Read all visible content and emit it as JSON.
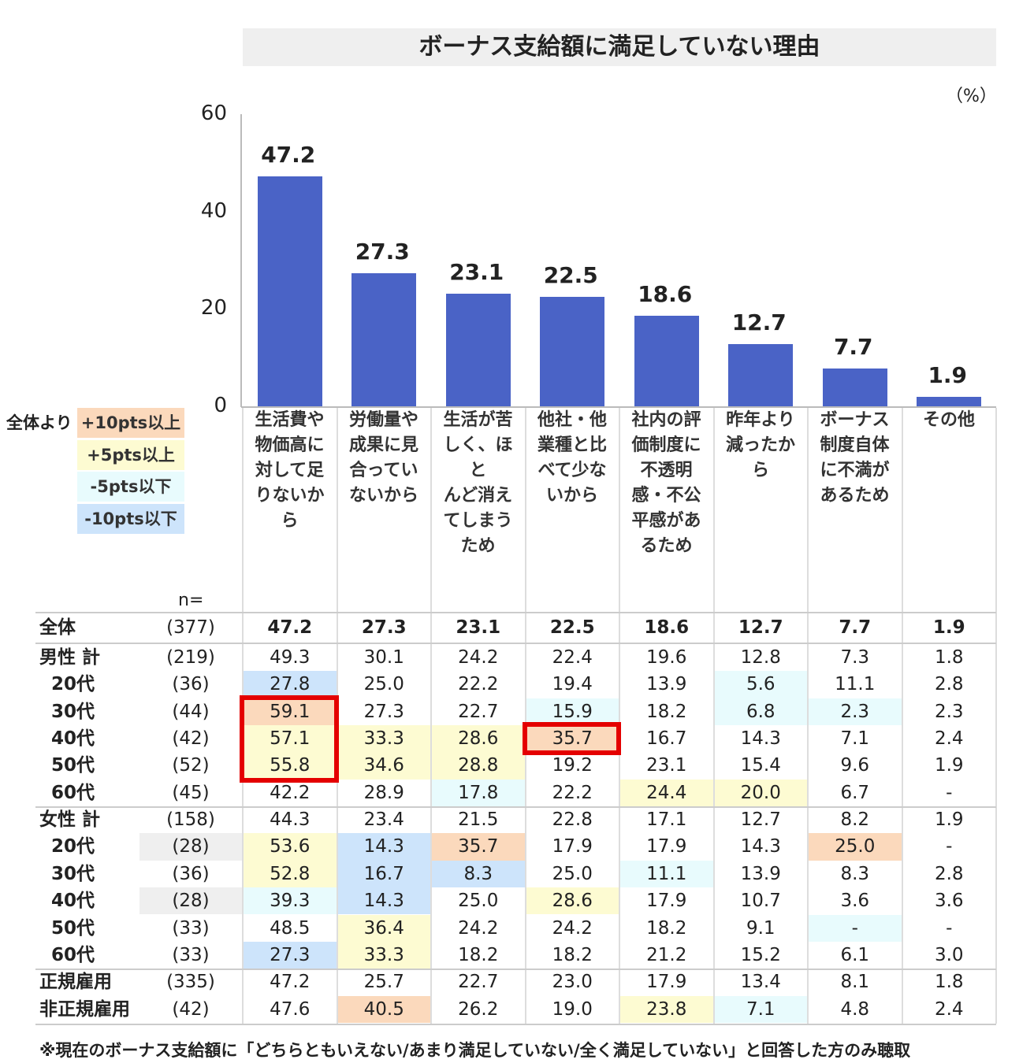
{
  "chart_data": {
    "type": "bar",
    "title": "ボーナス支給額に満足していない理由",
    "unit": "（%）",
    "ylim": [
      0,
      60
    ],
    "yticks": [
      "0",
      "20",
      "40",
      "60"
    ],
    "bar_color": "#4a63c6",
    "categories": [
      "生活費や物価高に対して足りないから",
      "労働量や成果に見合っていないから",
      "生活が苦しく、ほとんど消えてしまうため",
      "他社・他業種と比べて少ないから",
      "社内の評価制度に不透明感・不公平感があるため",
      "昨年より減ったから",
      "ボーナス制度自体に不満があるため",
      "その他"
    ],
    "category_lines": [
      [
        "生活費や",
        "物価高に",
        "対して足",
        "りないか",
        "ら"
      ],
      [
        "労働量や",
        "成果に見",
        "合ってい",
        "ないから"
      ],
      [
        "生活が苦",
        "しく、ほと",
        "んど消え",
        "てしまう",
        "ため"
      ],
      [
        "他社・他",
        "業種と比",
        "べて少な",
        "いから"
      ],
      [
        "社内の評",
        "価制度に",
        "不透明",
        "感・不公",
        "平感があ",
        "るため"
      ],
      [
        "昨年より",
        "減ったか",
        "ら"
      ],
      [
        "ボーナス",
        "制度自体",
        "に不満が",
        "あるため"
      ],
      [
        "その他"
      ]
    ],
    "values": [
      47.2,
      27.3,
      23.1,
      22.5,
      18.6,
      12.7,
      7.7,
      1.9
    ],
    "labels": [
      "47.2",
      "27.3",
      "23.1",
      "22.5",
      "18.6",
      "12.7",
      "7.7",
      "1.9"
    ]
  },
  "legend": {
    "prefix": "全体より",
    "items": [
      {
        "label": "+10pts以上",
        "color": "#fbd9bc"
      },
      {
        "label": "+5pts以上",
        "color": "#fdfbd2"
      },
      {
        "label": "-5pts以下",
        "color": "#e8fbfd"
      },
      {
        "label": "-10pts以下",
        "color": "#cde4fb"
      }
    ]
  },
  "table": {
    "n_header": "n=",
    "rows": [
      {
        "label": "全体",
        "n": "(377)",
        "bold": true,
        "values": [
          "47.2",
          "27.3",
          "23.1",
          "22.5",
          "18.6",
          "12.7",
          "7.7",
          "1.9"
        ],
        "marks": [
          "",
          "",
          "",
          "",
          "",
          "",
          "",
          ""
        ]
      },
      {
        "label": "男性 計",
        "n": "(219)",
        "values": [
          "49.3",
          "30.1",
          "24.2",
          "22.4",
          "19.6",
          "12.8",
          "7.3",
          "1.8"
        ],
        "marks": [
          "",
          "",
          "",
          "",
          "",
          "",
          "",
          ""
        ]
      },
      {
        "label": "20代",
        "n": "(36)",
        "values": [
          "27.8",
          "25.0",
          "22.2",
          "19.4",
          "13.9",
          "5.6",
          "11.1",
          "2.8"
        ],
        "marks": [
          "b",
          "",
          "",
          "",
          "",
          "c",
          "",
          ""
        ]
      },
      {
        "label": "30代",
        "n": "(44)",
        "values": [
          "59.1",
          "27.3",
          "22.7",
          "15.9",
          "18.2",
          "6.8",
          "2.3",
          "2.3"
        ],
        "marks": [
          "o",
          "",
          "",
          "c",
          "",
          "c",
          "c",
          ""
        ]
      },
      {
        "label": "40代",
        "n": "(42)",
        "values": [
          "57.1",
          "33.3",
          "28.6",
          "35.7",
          "16.7",
          "14.3",
          "7.1",
          "2.4"
        ],
        "marks": [
          "y",
          "y",
          "y",
          "o",
          "",
          "",
          "",
          ""
        ]
      },
      {
        "label": "50代",
        "n": "(52)",
        "values": [
          "55.8",
          "34.6",
          "28.8",
          "19.2",
          "23.1",
          "15.4",
          "9.6",
          "1.9"
        ],
        "marks": [
          "y",
          "y",
          "y",
          "",
          "",
          "",
          "",
          ""
        ]
      },
      {
        "label": "60代",
        "n": "(45)",
        "values": [
          "42.2",
          "28.9",
          "17.8",
          "22.2",
          "24.4",
          "20.0",
          "6.7",
          "-"
        ],
        "marks": [
          "",
          "",
          "c",
          "",
          "y",
          "y",
          "",
          ""
        ]
      },
      {
        "label": "女性 計",
        "n": "(158)",
        "values": [
          "44.3",
          "23.4",
          "21.5",
          "22.8",
          "17.1",
          "12.7",
          "8.2",
          "1.9"
        ],
        "marks": [
          "",
          "",
          "",
          "",
          "",
          "",
          "",
          ""
        ]
      },
      {
        "label": "20代",
        "n": "(28)",
        "n_gray": true,
        "values": [
          "53.6",
          "14.3",
          "35.7",
          "17.9",
          "17.9",
          "14.3",
          "25.0",
          "-"
        ],
        "marks": [
          "y",
          "b",
          "o",
          "",
          "",
          "",
          "o",
          ""
        ]
      },
      {
        "label": "30代",
        "n": "(36)",
        "values": [
          "52.8",
          "16.7",
          "8.3",
          "25.0",
          "11.1",
          "13.9",
          "8.3",
          "2.8"
        ],
        "marks": [
          "y",
          "b",
          "b",
          "",
          "c",
          "",
          "",
          ""
        ]
      },
      {
        "label": "40代",
        "n": "(28)",
        "n_gray": true,
        "values": [
          "39.3",
          "14.3",
          "25.0",
          "28.6",
          "17.9",
          "10.7",
          "3.6",
          "3.6"
        ],
        "marks": [
          "c",
          "b",
          "",
          "y",
          "",
          "",
          "",
          ""
        ]
      },
      {
        "label": "50代",
        "n": "(33)",
        "values": [
          "48.5",
          "36.4",
          "24.2",
          "24.2",
          "18.2",
          "9.1",
          "-",
          "-"
        ],
        "marks": [
          "",
          "y",
          "",
          "",
          "",
          "",
          "c",
          ""
        ]
      },
      {
        "label": "60代",
        "n": "(33)",
        "values": [
          "27.3",
          "33.3",
          "18.2",
          "18.2",
          "21.2",
          "15.2",
          "6.1",
          "3.0"
        ],
        "marks": [
          "b",
          "y",
          "",
          "",
          "",
          "",
          "",
          ""
        ]
      },
      {
        "label": "正規雇用",
        "n": "(335)",
        "values": [
          "47.2",
          "25.7",
          "22.7",
          "23.0",
          "17.9",
          "13.4",
          "8.1",
          "1.8"
        ],
        "marks": [
          "",
          "",
          "",
          "",
          "",
          "",
          "",
          ""
        ]
      },
      {
        "label": "非正規雇用",
        "n": "(42)",
        "values": [
          "47.6",
          "40.5",
          "26.2",
          "19.0",
          "23.8",
          "7.1",
          "4.8",
          "2.4"
        ],
        "marks": [
          "",
          "o",
          "",
          "",
          "y",
          "c",
          "",
          ""
        ]
      }
    ],
    "highlights": [
      {
        "col": 0,
        "rows": [
          3,
          5
        ]
      },
      {
        "col": 3,
        "rows": [
          4,
          4
        ]
      }
    ]
  },
  "note": "※現在のボーナス支給額に「どちらともいえない/あまり満足していない/全く満足していない」と回答した方のみ聴取"
}
